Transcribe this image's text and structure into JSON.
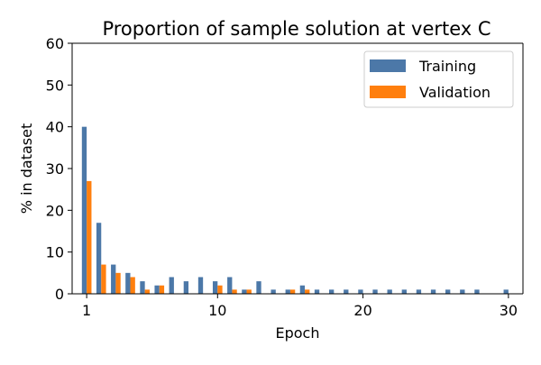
{
  "chart_data": {
    "type": "bar",
    "title": "Proportion of sample solution at vertex C",
    "xlabel": "Epoch",
    "ylabel": "% in dataset",
    "xlim": [
      0,
      31
    ],
    "ylim": [
      0,
      60
    ],
    "xticks": [
      1,
      10,
      20,
      30
    ],
    "yticks": [
      0,
      10,
      20,
      30,
      40,
      50,
      60
    ],
    "grid": false,
    "legend_position": "top-right",
    "colors": {
      "Training": "#4c78a8",
      "Validation": "#ff7f0e"
    },
    "series": [
      {
        "name": "Training",
        "x": [
          1,
          2,
          3,
          4,
          5,
          6,
          7,
          8,
          9,
          10,
          11,
          12,
          13,
          14,
          15,
          16,
          17,
          18,
          19,
          20,
          21,
          22,
          23,
          24,
          25,
          26,
          27,
          28,
          30
        ],
        "values": [
          40,
          17,
          7,
          5,
          3,
          2,
          4,
          3,
          4,
          3,
          4,
          1,
          3,
          1,
          1,
          2,
          1,
          1,
          1,
          1,
          1,
          1,
          1,
          1,
          1,
          1,
          1,
          1,
          1
        ]
      },
      {
        "name": "Validation",
        "x": [
          1,
          2,
          3,
          4,
          5,
          6,
          10,
          11,
          12,
          15,
          16
        ],
        "values": [
          27,
          7,
          5,
          4,
          1,
          2,
          2,
          1,
          1,
          1,
          1
        ]
      }
    ]
  }
}
